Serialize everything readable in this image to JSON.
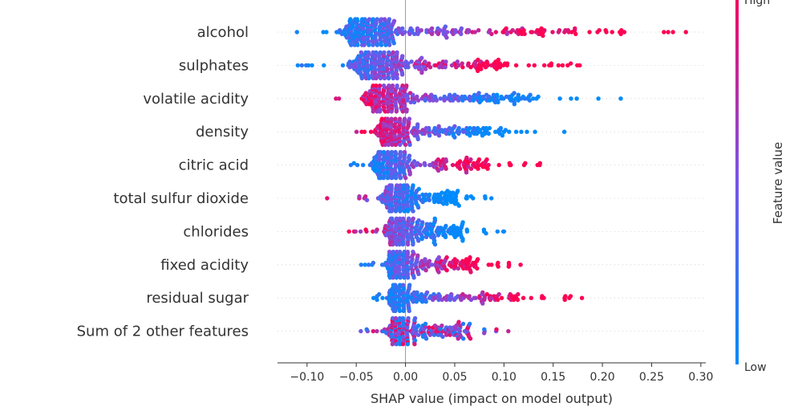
{
  "chart_data": {
    "type": "scatter",
    "subtype": "beeswarm",
    "title": "",
    "xlabel": "SHAP value (impact on model output)",
    "ylabel": "",
    "xlim": [
      -0.13,
      0.305
    ],
    "xticks": [
      -0.1,
      -0.05,
      0.0,
      0.05,
      0.1,
      0.15,
      0.2,
      0.25,
      0.3
    ],
    "xtick_labels": [
      "−0.10",
      "−0.05",
      "0.00",
      "0.05",
      "0.10",
      "0.15",
      "0.20",
      "0.25",
      "0.30"
    ],
    "grid": false,
    "colorbar": {
      "title": "Feature value",
      "high_label": "High",
      "low_label": "Low",
      "high_color": "#ff0052",
      "low_color": "#008bfb"
    },
    "features": [
      {
        "name": "alcohol",
        "min": -0.11,
        "max": 0.285,
        "mode": -0.035,
        "spread": 0.04,
        "color_trend": "positive"
      },
      {
        "name": "sulphates",
        "min": -0.11,
        "max": 0.177,
        "mode": -0.03,
        "spread": 0.038,
        "color_trend": "positive"
      },
      {
        "name": "volatile acidity",
        "min": -0.07,
        "max": 0.219,
        "mode": -0.02,
        "spread": 0.03,
        "color_trend": "negative"
      },
      {
        "name": "density",
        "min": -0.05,
        "max": 0.161,
        "mode": -0.012,
        "spread": 0.022,
        "color_trend": "negative"
      },
      {
        "name": "citric acid",
        "min": -0.055,
        "max": 0.137,
        "mode": -0.015,
        "spread": 0.025,
        "color_trend": "positive"
      },
      {
        "name": "total sulfur dioxide",
        "min": -0.08,
        "max": 0.087,
        "mode": -0.005,
        "spread": 0.025,
        "color_trend": "negative"
      },
      {
        "name": "chlorides",
        "min": -0.057,
        "max": 0.1,
        "mode": -0.005,
        "spread": 0.02,
        "color_trend": "negative"
      },
      {
        "name": "fixed acidity",
        "min": -0.045,
        "max": 0.117,
        "mode": -0.005,
        "spread": 0.02,
        "color_trend": "positive"
      },
      {
        "name": "residual sugar",
        "min": -0.033,
        "max": 0.179,
        "mode": -0.005,
        "spread": 0.015,
        "color_trend": "positive"
      },
      {
        "name": "Sum of 2 other features",
        "min": -0.045,
        "max": 0.104,
        "mode": -0.005,
        "spread": 0.018,
        "color_trend": "mixed"
      }
    ]
  }
}
